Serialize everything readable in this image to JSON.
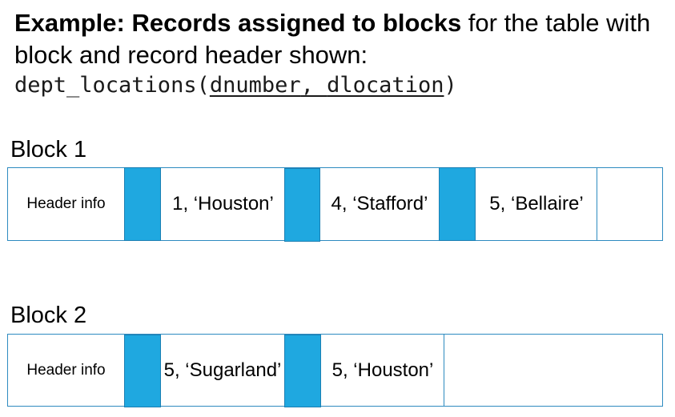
{
  "title": {
    "bold": "Example: Records assigned to blocks",
    "rest": " for the table with block and record header shown:"
  },
  "code": {
    "prefix": "dept_locations(",
    "attr1": "dnumber",
    "between": ", ",
    "attr2": "dlocation",
    "suffix": ")"
  },
  "blocks": [
    {
      "label": "Block 1",
      "header": "Header info",
      "records": [
        "1, ‘Houston’",
        "4, ‘Stafford’",
        "5, ‘Bellaire’"
      ]
    },
    {
      "label": "Block 2",
      "header": "Header info",
      "records": [
        "5, ‘Sugarland’",
        "5, ‘Houston’"
      ]
    }
  ],
  "colors": {
    "record_header": "#1fa8e0",
    "border": "#2e8bc0"
  }
}
